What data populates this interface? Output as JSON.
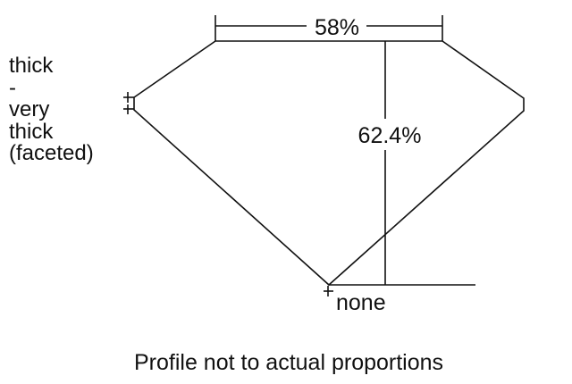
{
  "labels": {
    "table": "58%",
    "depth": "62.4%",
    "culet": "none",
    "girdle_lines": [
      "thick",
      "-",
      "very",
      "thick",
      "(faceted)"
    ],
    "note": "Profile not to actual proportions"
  },
  "colors": {
    "line": "#111111",
    "background": "#ffffff"
  }
}
